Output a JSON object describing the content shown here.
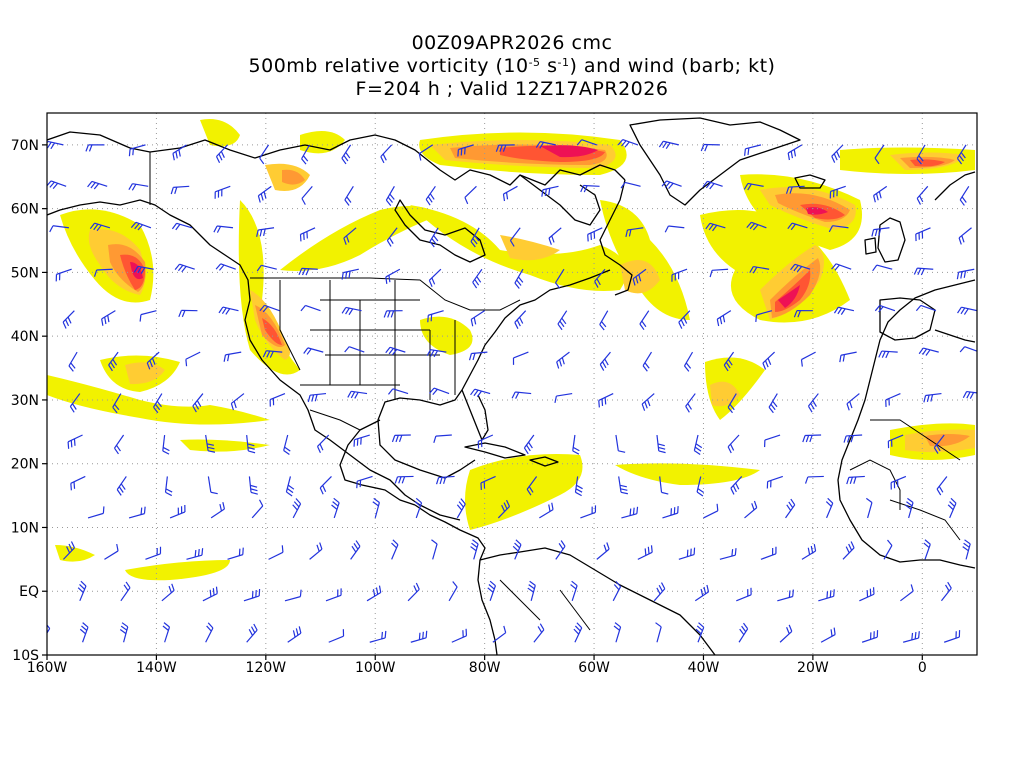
{
  "title": {
    "line1": "00Z09APR2026 cmc",
    "line2_pre": "500mb relative vorticity (10",
    "line2_exp1": "-5",
    "line2_mid": " s",
    "line2_exp2": "-1",
    "line2_post": ") and wind (barb; kt)",
    "line3": "F=204 h ; Valid 12Z17APR2026"
  },
  "map": {
    "projection": "cylindrical",
    "lon_range": [
      -160,
      10
    ],
    "lat_range": [
      -10,
      75
    ],
    "grid": true,
    "x_ticks": [
      {
        "lon": -160,
        "label": "160W"
      },
      {
        "lon": -140,
        "label": "140W"
      },
      {
        "lon": -120,
        "label": "120W"
      },
      {
        "lon": -100,
        "label": "100W"
      },
      {
        "lon": -80,
        "label": "80W"
      },
      {
        "lon": -60,
        "label": "60W"
      },
      {
        "lon": -40,
        "label": "40W"
      },
      {
        "lon": -20,
        "label": "20W"
      },
      {
        "lon": 0,
        "label": "0"
      }
    ],
    "y_ticks": [
      {
        "lat": -10,
        "label": "10S"
      },
      {
        "lat": 0,
        "label": "EQ"
      },
      {
        "lat": 10,
        "label": "10N"
      },
      {
        "lat": 20,
        "label": "20N"
      },
      {
        "lat": 30,
        "label": "30N"
      },
      {
        "lat": 40,
        "label": "40N"
      },
      {
        "lat": 50,
        "label": "50N"
      },
      {
        "lat": 60,
        "label": "60N"
      },
      {
        "lat": 70,
        "label": "70N"
      }
    ],
    "colors": {
      "low": "#f2f200",
      "mid": "#ffcc33",
      "mid2": "#ff9933",
      "high": "#ff5533",
      "peak": "#ee1155",
      "barb": "#2233dd",
      "coast": "#000000",
      "grid": "#999999"
    }
  },
  "vorticity_features": [
    {
      "lon": -143,
      "lat": 51,
      "level": 5
    },
    {
      "lon": -123,
      "lat": 40,
      "level": 4
    },
    {
      "lon": -69,
      "lat": 68,
      "level": 5
    },
    {
      "lon": -27,
      "lat": 45,
      "level": 5
    },
    {
      "lon": -20,
      "lat": 59,
      "level": 4
    },
    {
      "lon": -114,
      "lat": 66,
      "level": 3
    },
    {
      "lon": -85,
      "lat": 57,
      "level": 3
    },
    {
      "lon": -75,
      "lat": 52,
      "level": 3
    },
    {
      "lon": -54,
      "lat": 47,
      "level": 3
    },
    {
      "lon": -142,
      "lat": 34,
      "level": 3
    },
    {
      "lon": -38,
      "lat": 30,
      "level": 2
    },
    {
      "lon": 4,
      "lat": 23,
      "level": 2
    },
    {
      "lon": -2,
      "lat": 67,
      "level": 3
    },
    {
      "lon": -88,
      "lat": 40,
      "level": 2
    },
    {
      "lon": -80,
      "lat": 15,
      "level": 1
    },
    {
      "lon": -35,
      "lat": 19,
      "level": 1
    },
    {
      "lon": -126,
      "lat": 3,
      "level": 1
    },
    {
      "lon": -130,
      "lat": 23,
      "level": 1
    }
  ]
}
